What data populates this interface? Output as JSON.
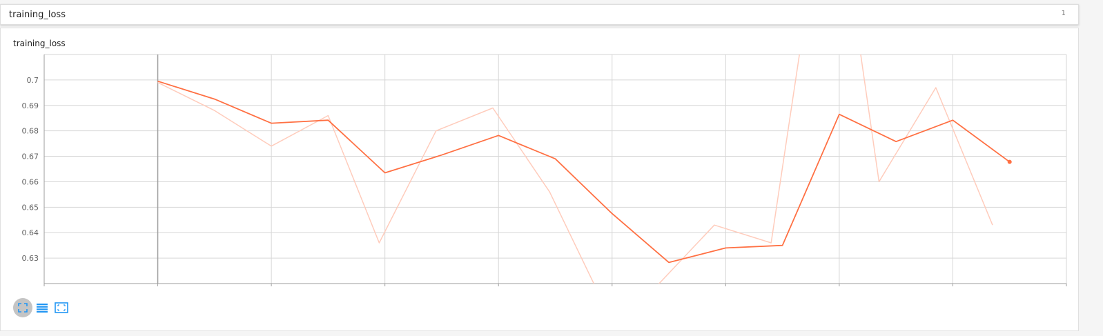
{
  "group": {
    "title": "training_loss",
    "count": "1"
  },
  "card": {
    "title": "training_loss"
  },
  "colors": {
    "smoothed": "#ff7043",
    "raw": "#ffccbc",
    "grid": "#d6d6d6",
    "highlight_line": "#9e9e9e",
    "accent": "#2196f3"
  },
  "toolbar": {
    "icons": [
      "fullscreen-icon",
      "log-scale-icon",
      "fit-domain-icon"
    ]
  },
  "chart_data": {
    "type": "line",
    "ylim": [
      0.62,
      0.71
    ],
    "y_ticks": [
      0.63,
      0.64,
      0.65,
      0.66,
      0.67,
      0.68,
      0.69,
      0.7
    ],
    "y_tick_labels": [
      "0.63",
      "0.64",
      "0.65",
      "0.66",
      "0.67",
      "0.68",
      "0.69",
      "0.7"
    ],
    "x_gridlines": 10,
    "grid": true,
    "series": [
      {
        "role": "raw",
        "values": [
          [
            1.0,
            0.699
          ],
          [
            1.5,
            0.688
          ],
          [
            2.0,
            0.674
          ],
          [
            2.5,
            0.686
          ],
          [
            2.95,
            0.636
          ],
          [
            3.45,
            0.68
          ],
          [
            3.95,
            0.689
          ],
          [
            4.45,
            0.656
          ],
          [
            4.85,
            0.619
          ],
          [
            5.35,
            0.617
          ],
          [
            5.9,
            0.643
          ],
          [
            6.4,
            0.636
          ],
          [
            6.7,
            0.725
          ],
          [
            7.15,
            0.722
          ],
          [
            7.35,
            0.66
          ],
          [
            7.85,
            0.697
          ],
          [
            8.35,
            0.643
          ]
        ]
      },
      {
        "role": "smoothed",
        "values": [
          [
            1.0,
            0.6995
          ],
          [
            1.5,
            0.6925
          ],
          [
            2.0,
            0.683
          ],
          [
            2.5,
            0.6842
          ],
          [
            3.0,
            0.6635
          ],
          [
            3.5,
            0.6705
          ],
          [
            4.0,
            0.6782
          ],
          [
            4.5,
            0.669
          ],
          [
            5.0,
            0.6475
          ],
          [
            5.5,
            0.6283
          ],
          [
            6.0,
            0.634
          ],
          [
            6.5,
            0.635
          ],
          [
            7.0,
            0.6865
          ],
          [
            7.5,
            0.6758
          ],
          [
            8.0,
            0.6842
          ],
          [
            8.5,
            0.6678
          ]
        ]
      }
    ]
  }
}
